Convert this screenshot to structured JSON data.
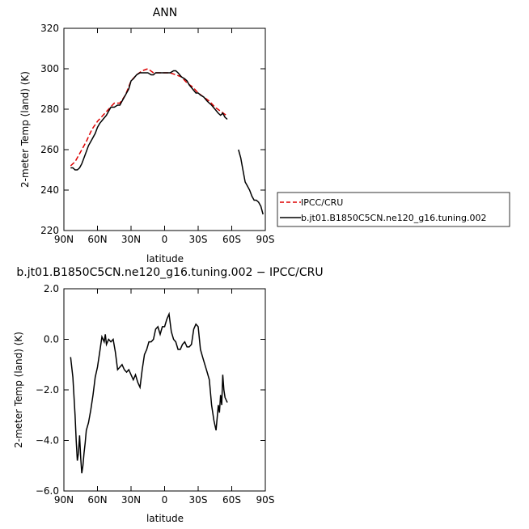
{
  "chart_data": [
    {
      "type": "line",
      "title": "ANN",
      "xlabel": "latitude",
      "ylabel": "2-meter Temp (land) (K)",
      "xlim": [
        90,
        -90
      ],
      "ylim": [
        220,
        320
      ],
      "xticks": [
        90,
        60,
        30,
        0,
        -30,
        -60,
        -90
      ],
      "xtick_labels": [
        "90N",
        "60N",
        "30N",
        "0",
        "30S",
        "60S",
        "90S"
      ],
      "yticks": [
        220,
        240,
        260,
        280,
        300,
        320
      ],
      "ytick_labels": [
        "220",
        "240",
        "260",
        "280",
        "300",
        "320"
      ],
      "legend_placement": "right",
      "series": [
        {
          "name": "IPCC/CRU",
          "color": "#dd0000",
          "dash": "dashed",
          "x": [
            84,
            80,
            75,
            70,
            65,
            60,
            55,
            50,
            45,
            40,
            35,
            30,
            25,
            20,
            15,
            10,
            5,
            0,
            -5,
            -10,
            -15,
            -20,
            -25,
            -30,
            -35,
            -40,
            -45,
            -50,
            -55
          ],
          "y": [
            252,
            254,
            259,
            264,
            270,
            274,
            277,
            280,
            283,
            283,
            287,
            294,
            297,
            299,
            300,
            298,
            298,
            298,
            298,
            297,
            296,
            293,
            291,
            288,
            286,
            284,
            281,
            279,
            277
          ]
        },
        {
          "name": "b.jt01.B1850C5CN.ne120_g16.tuning.002",
          "color": "#000000",
          "dash": "solid",
          "x": [
            84,
            82,
            80,
            78,
            76,
            74,
            72,
            70,
            68,
            65,
            62,
            60,
            58,
            55,
            52,
            50,
            48,
            45,
            42,
            40,
            38,
            35,
            32,
            30,
            28,
            25,
            22,
            20,
            18,
            15,
            12,
            10,
            8,
            5,
            2,
            0,
            -2,
            -5,
            -8,
            -10,
            -12,
            -15,
            -18,
            -20,
            -22,
            -25,
            -28,
            -30,
            -32,
            -35,
            -38,
            -40,
            -42,
            -45,
            -48,
            -50,
            -52,
            -54,
            -56,
            -66,
            -68,
            -70,
            -72,
            -74,
            -76,
            -78,
            -80,
            -82,
            -84,
            -86,
            -88
          ],
          "y": [
            251,
            251,
            250,
            250,
            251,
            253,
            256,
            259,
            262,
            265,
            268,
            271,
            273,
            275,
            277,
            279,
            281,
            281,
            282,
            282,
            284,
            287,
            290,
            294,
            295,
            297,
            298,
            298,
            298,
            298,
            297,
            297,
            298,
            298,
            298,
            298,
            298,
            298,
            299,
            299,
            298,
            296,
            295,
            294,
            292,
            290,
            288,
            288,
            287,
            286,
            284,
            283,
            282,
            280,
            278,
            277,
            278,
            276,
            275,
            260,
            256,
            250,
            244,
            242,
            240,
            237,
            235,
            235,
            234,
            232,
            228
          ]
        }
      ]
    },
    {
      "type": "line",
      "title": "b.jt01.B1850C5CN.ne120_g16.tuning.002 − IPCC/CRU",
      "xlabel": "latitude",
      "ylabel": "2-meter Temp (land) (K)",
      "xlim": [
        90,
        -90
      ],
      "ylim": [
        -6,
        2
      ],
      "xticks": [
        90,
        60,
        30,
        0,
        -30,
        -60,
        -90
      ],
      "xtick_labels": [
        "90N",
        "60N",
        "30N",
        "0",
        "30S",
        "60S",
        "90S"
      ],
      "yticks": [
        -6,
        -4,
        -2,
        0,
        2
      ],
      "ytick_labels": [
        "−6.0",
        "−4.0",
        "−2.0",
        "0.0",
        "2.0"
      ],
      "series": [
        {
          "color": "#000000",
          "x": [
            84,
            82,
            80,
            79,
            78,
            77,
            76,
            75,
            74,
            73,
            72,
            71,
            70,
            68,
            66,
            64,
            62,
            60,
            58,
            56,
            54,
            53,
            52,
            50,
            48,
            46,
            44,
            42,
            40,
            38,
            36,
            34,
            32,
            30,
            28,
            26,
            24,
            22,
            20,
            18,
            16,
            14,
            12,
            10,
            8,
            6,
            4,
            2,
            0,
            -2,
            -4,
            -6,
            -8,
            -10,
            -12,
            -14,
            -16,
            -18,
            -20,
            -22,
            -24,
            -26,
            -28,
            -30,
            -32,
            -34,
            -36,
            -38,
            -40,
            -42,
            -44,
            -46,
            -48,
            -49,
            -50,
            -51,
            -52,
            -53,
            -54,
            -55,
            -56
          ],
          "y": [
            -0.7,
            -1.5,
            -3.0,
            -4.0,
            -4.8,
            -4.5,
            -3.8,
            -4.7,
            -5.3,
            -5.0,
            -4.5,
            -4.1,
            -3.6,
            -3.3,
            -2.8,
            -2.2,
            -1.5,
            -1.1,
            -0.5,
            0.1,
            -0.1,
            0.2,
            -0.2,
            0.0,
            -0.1,
            0.0,
            -0.5,
            -1.2,
            -1.1,
            -1.0,
            -1.2,
            -1.3,
            -1.2,
            -1.4,
            -1.6,
            -1.4,
            -1.7,
            -1.9,
            -1.2,
            -0.6,
            -0.4,
            -0.1,
            -0.1,
            0.0,
            0.4,
            0.5,
            0.2,
            0.5,
            0.5,
            0.8,
            1.0,
            0.3,
            0.0,
            -0.1,
            -0.4,
            -0.4,
            -0.2,
            -0.1,
            -0.3,
            -0.3,
            -0.2,
            0.4,
            0.6,
            0.5,
            -0.4,
            -0.7,
            -1.0,
            -1.3,
            -1.6,
            -2.6,
            -3.2,
            -3.6,
            -2.6,
            -2.9,
            -2.2,
            -2.6,
            -1.4,
            -2.0,
            -2.3,
            -2.4,
            -2.5
          ]
        }
      ]
    }
  ]
}
